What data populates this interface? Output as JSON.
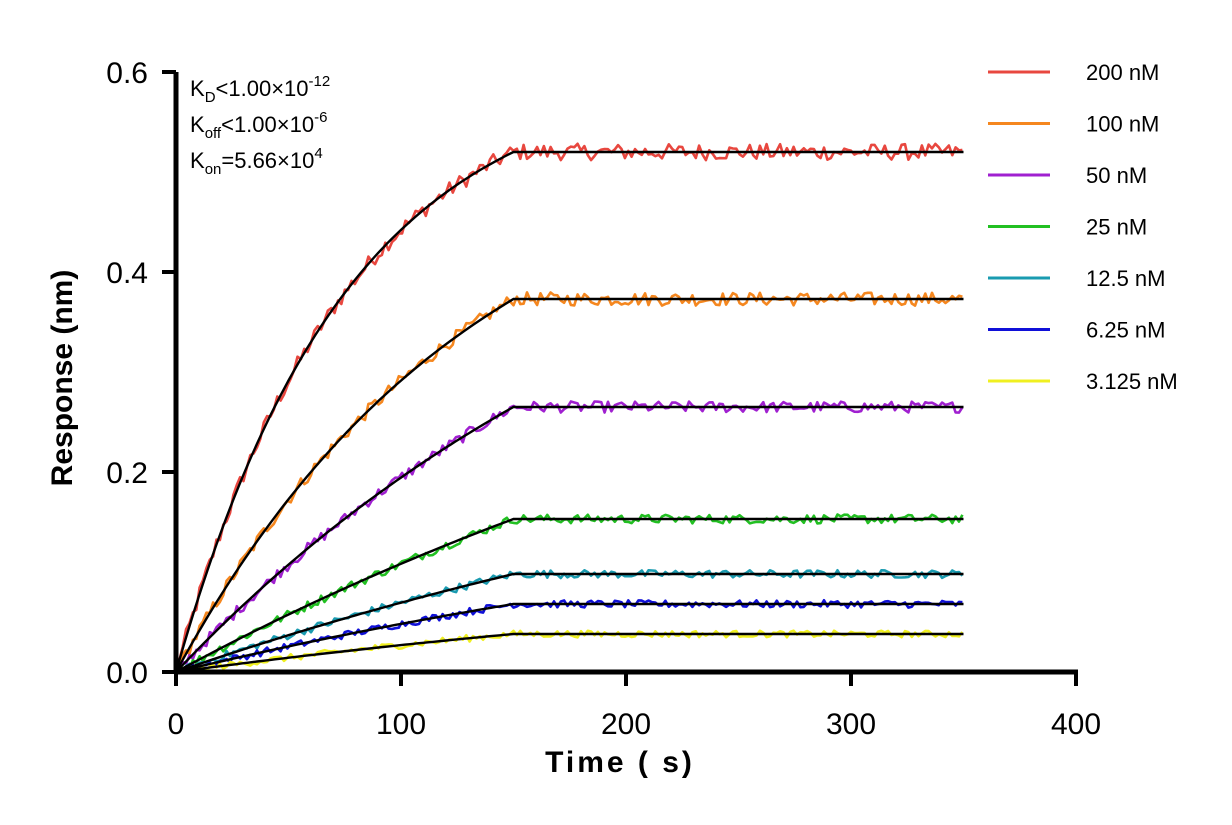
{
  "chart_data": {
    "type": "line",
    "title": "",
    "xlabel": "Time ( s)",
    "ylabel": "Response (nm)",
    "xlim": [
      0,
      400
    ],
    "ylim": [
      0,
      0.6
    ],
    "x_ticks": [
      0,
      100,
      200,
      300,
      400
    ],
    "x_tick_labels": [
      "0",
      "100",
      "200",
      "300",
      "400"
    ],
    "y_ticks": [
      0.0,
      0.2,
      0.4,
      0.6
    ],
    "y_tick_labels": [
      "0.0",
      "0.2",
      "0.4",
      "0.6"
    ],
    "grid": false,
    "legend_position": "right",
    "association_end_s": 150,
    "end_time_s": 350,
    "annotations": {
      "kd": {
        "main": "K",
        "sub": "D",
        "text": "<1.00×10",
        "exp": "-12"
      },
      "koff": {
        "main": "K",
        "sub": "off",
        "text": "<1.00×10",
        "exp": "-6"
      },
      "kon": {
        "main": "K",
        "sub": "on",
        "text": "=5.66×10",
        "exp": "4"
      }
    },
    "fit_color": "#000000",
    "series": [
      {
        "name": "200 nM",
        "color": "#e8473f",
        "plateau": 0.52,
        "kobs": 0.0132
      },
      {
        "name": "100 nM",
        "color": "#f5871f",
        "plateau": 0.373,
        "kobs": 0.0075
      },
      {
        "name": "50 nM",
        "color": "#a020d0",
        "plateau": 0.265,
        "kobs": 0.0042
      },
      {
        "name": "25 nM",
        "color": "#22c022",
        "plateau": 0.153,
        "kobs": 0.0025
      },
      {
        "name": "12.5 nM",
        "color": "#1a9bb0",
        "plateau": 0.098,
        "kobs": 0.0025
      },
      {
        "name": "6.25 nM",
        "color": "#1010d8",
        "plateau": 0.068,
        "kobs": 0.0025
      },
      {
        "name": "3.125 nM",
        "color": "#f0f020",
        "plateau": 0.038,
        "kobs": 0.0025
      }
    ]
  }
}
